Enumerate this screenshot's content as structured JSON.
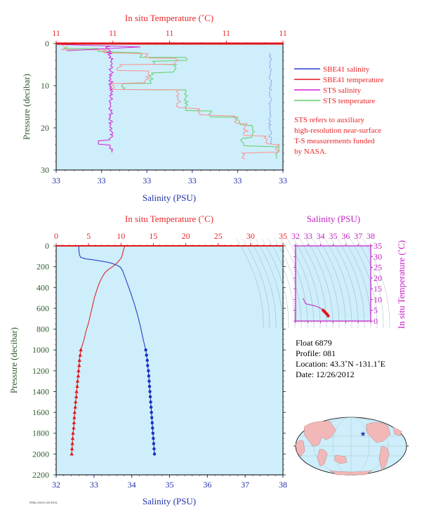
{
  "chart_data": [
    {
      "type": "line",
      "title": "",
      "top_axis_label": "In situ Temperature (˚C)",
      "bottom_axis_label": "Salinity (PSU)",
      "ylabel": "Pressure (decibar)",
      "top_ticks": [
        "11",
        "11",
        "11",
        "11",
        "11"
      ],
      "bottom_ticks": [
        "33",
        "33",
        "33",
        "33",
        "33",
        "33"
      ],
      "y_ticks": [
        "0",
        "10",
        "20",
        "30"
      ],
      "ylim": [
        0,
        30
      ],
      "series": [
        {
          "name": "SBE41 salinity",
          "color": "#2a3fd0"
        },
        {
          "name": "SBE41 temperature",
          "color": "#e0161c"
        },
        {
          "name": "STS salinity",
          "color": "#d61ad6"
        },
        {
          "name": "STS temperature",
          "color": "#66cc66"
        }
      ],
      "annotation": [
        "STS refers to auxiliary",
        "high-resolution near-surface",
        "T-S measurements funded",
        "by NASA."
      ]
    },
    {
      "type": "line",
      "title": "",
      "top_axis_label": "In situ Temperature (˚C)",
      "bottom_axis_label": "Salinity (PSU)",
      "ylabel": "Pressure (decibar)",
      "top_ticks": [
        "0",
        "5",
        "10",
        "15",
        "20",
        "25",
        "30",
        "35"
      ],
      "bottom_ticks": [
        "32",
        "33",
        "34",
        "35",
        "36",
        "37",
        "38"
      ],
      "y_ticks": [
        "0",
        "200",
        "400",
        "600",
        "800",
        "1000",
        "1200",
        "1400",
        "1600",
        "1800",
        "2000",
        "2200"
      ],
      "temperature_range": [
        0,
        35
      ],
      "salinity_range": [
        32,
        38
      ],
      "ylim": [
        0,
        2200
      ],
      "series": [
        {
          "name": "Temperature",
          "color": "#e0161c",
          "x_units": "˚C",
          "points": [
            [
              10.6,
              5
            ],
            [
              10.5,
              20
            ],
            [
              10.4,
              40
            ],
            [
              10.3,
              60
            ],
            [
              10.2,
              90
            ],
            [
              10.0,
              120
            ],
            [
              9.6,
              150
            ],
            [
              9.2,
              175
            ],
            [
              8.7,
              200
            ],
            [
              8.0,
              230
            ],
            [
              7.5,
              260
            ],
            [
              7.1,
              300
            ],
            [
              6.7,
              350
            ],
            [
              6.3,
              420
            ],
            [
              5.9,
              500
            ],
            [
              5.6,
              580
            ],
            [
              5.3,
              660
            ],
            [
              5.0,
              740
            ],
            [
              4.6,
              820
            ],
            [
              4.3,
              900
            ],
            [
              4.0,
              960
            ],
            [
              3.8,
              1000
            ]
          ],
          "bottle_points": [
            [
              3.8,
              1000
            ],
            [
              3.7,
              1050
            ],
            [
              3.6,
              1100
            ],
            [
              3.55,
              1150
            ],
            [
              3.45,
              1200
            ],
            [
              3.4,
              1250
            ],
            [
              3.3,
              1300
            ],
            [
              3.25,
              1350
            ],
            [
              3.15,
              1400
            ],
            [
              3.1,
              1450
            ],
            [
              3.0,
              1500
            ],
            [
              2.95,
              1550
            ],
            [
              2.85,
              1600
            ],
            [
              2.8,
              1650
            ],
            [
              2.75,
              1700
            ],
            [
              2.7,
              1750
            ],
            [
              2.6,
              1800
            ],
            [
              2.55,
              1850
            ],
            [
              2.5,
              1900
            ],
            [
              2.45,
              1950
            ],
            [
              2.4,
              2000
            ]
          ]
        },
        {
          "name": "Salinity",
          "color": "#1a2fc4",
          "x_units": "PSU",
          "points": [
            [
              32.6,
              5
            ],
            [
              32.6,
              50
            ],
            [
              32.62,
              90
            ],
            [
              32.65,
              110
            ],
            [
              32.78,
              125
            ],
            [
              33.0,
              135
            ],
            [
              33.25,
              150
            ],
            [
              33.45,
              165
            ],
            [
              33.6,
              185
            ],
            [
              33.7,
              205
            ],
            [
              33.76,
              240
            ],
            [
              33.82,
              300
            ],
            [
              33.9,
              380
            ],
            [
              33.98,
              460
            ],
            [
              34.07,
              560
            ],
            [
              34.15,
              660
            ],
            [
              34.22,
              760
            ],
            [
              34.28,
              860
            ],
            [
              34.33,
              940
            ],
            [
              34.37,
              1000
            ]
          ],
          "bottle_points": [
            [
              34.37,
              1000
            ],
            [
              34.39,
              1050
            ],
            [
              34.41,
              1100
            ],
            [
              34.42,
              1150
            ],
            [
              34.44,
              1200
            ],
            [
              34.45,
              1250
            ],
            [
              34.46,
              1300
            ],
            [
              34.47,
              1350
            ],
            [
              34.48,
              1400
            ],
            [
              34.49,
              1450
            ],
            [
              34.5,
              1500
            ],
            [
              34.51,
              1550
            ],
            [
              34.52,
              1600
            ],
            [
              34.53,
              1650
            ],
            [
              34.54,
              1700
            ],
            [
              34.55,
              1750
            ],
            [
              34.56,
              1800
            ],
            [
              34.57,
              1850
            ],
            [
              34.58,
              1900
            ],
            [
              34.59,
              1950
            ],
            [
              34.6,
              2000
            ]
          ]
        }
      ]
    },
    {
      "type": "scatter",
      "title": "",
      "top_axis_label": "Salinity (PSU)",
      "right_axis_label": "In situ Temperature (˚C)",
      "x_ticks": [
        "32",
        "33",
        "34",
        "35",
        "36",
        "37",
        "38"
      ],
      "y_ticks": [
        "0",
        "5",
        "10",
        "15",
        "20",
        "25",
        "30",
        "35"
      ],
      "xlim": [
        32,
        38
      ],
      "ylim": [
        0,
        35
      ],
      "series": [
        {
          "name": "T-S",
          "color": "#c21fc2",
          "points": [
            [
              32.6,
              10.6
            ],
            [
              32.8,
              8.0
            ],
            [
              33.6,
              7.0
            ],
            [
              33.9,
              6.2
            ],
            [
              34.1,
              5.6
            ],
            [
              34.2,
              5.0
            ],
            [
              34.3,
              4.4
            ],
            [
              34.4,
              3.8
            ],
            [
              34.5,
              3.2
            ],
            [
              34.6,
              2.4
            ]
          ]
        }
      ]
    }
  ],
  "float_info": {
    "float": "Float  6879",
    "profile": "Profile:  081",
    "location": "Location:  43.3˚N  -131.1˚E",
    "date": "Date:  12/26/2012"
  },
  "footer_note": "PMEL/JISAO 20130102"
}
